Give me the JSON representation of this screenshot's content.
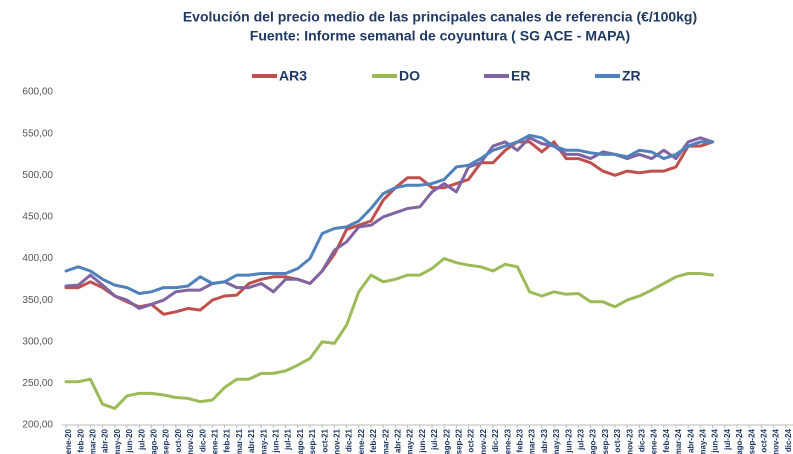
{
  "chart_data": {
    "type": "line",
    "title": "Evolución del precio medio de las principales canales de referencia  (€/100kg)",
    "subtitle": "Fuente: Informe semanal de coyuntura ( SG ACE - MAPA)",
    "categories": [
      "ene-20",
      "feb-20",
      "mar-20",
      "abr-20",
      "may-20",
      "jun-20",
      "jul-20",
      "ago-20",
      "sep-20",
      "oct-20",
      "nov-20",
      "dic-20",
      "ene-21",
      "feb-21",
      "mar-21",
      "abr-21",
      "may-21",
      "jun-21",
      "jul-21",
      "ago-21",
      "sep-21",
      "oct-21",
      "nov-21",
      "dic-21",
      "ene-22",
      "feb-22",
      "mar-22",
      "abr-22",
      "may-22",
      "jun-22",
      "jul-22",
      "ago-22",
      "sep-22",
      "oct-22",
      "nov-22",
      "dic-22",
      "ene-23",
      "feb-23",
      "mar-23",
      "abr-23",
      "may-23",
      "jun-23",
      "jul-23",
      "ago-23",
      "sep-23",
      "oct-23",
      "nov-23",
      "dic-23",
      "ene-24",
      "feb-24",
      "mar-24",
      "abr-24",
      "may-24",
      "jun-24",
      "jul-24",
      "ago-24",
      "sep-24",
      "oct-24",
      "nov-24",
      "dic-24"
    ],
    "series": [
      {
        "name": "AR3",
        "color": "#c0504d",
        "values": [
          365,
          365,
          372,
          365,
          355,
          348,
          342,
          345,
          333,
          336,
          340,
          338,
          350,
          355,
          356,
          370,
          375,
          378,
          378,
          375,
          370,
          385,
          405,
          435,
          440,
          445,
          470,
          485,
          497,
          497,
          485,
          485,
          490,
          495,
          515,
          515,
          530,
          540,
          540,
          528,
          540,
          520,
          520,
          515,
          505,
          500,
          505,
          503,
          505,
          505,
          510,
          535,
          535,
          540,
          null,
          null,
          null,
          null,
          null,
          null
        ]
      },
      {
        "name": "DO",
        "color": "#9bbb59",
        "values": [
          252,
          252,
          255,
          225,
          220,
          235,
          238,
          238,
          236,
          233,
          232,
          228,
          230,
          245,
          255,
          255,
          262,
          262,
          265,
          272,
          280,
          300,
          298,
          320,
          360,
          380,
          372,
          375,
          380,
          380,
          388,
          400,
          395,
          392,
          390,
          385,
          393,
          390,
          360,
          355,
          360,
          357,
          358,
          348,
          348,
          342,
          350,
          355,
          362,
          370,
          378,
          382,
          382,
          380,
          null,
          null,
          null,
          null,
          null,
          null
        ]
      },
      {
        "name": "ER",
        "color": "#8064a2",
        "values": [
          367,
          368,
          380,
          368,
          355,
          350,
          340,
          345,
          350,
          360,
          362,
          362,
          370,
          372,
          365,
          365,
          370,
          360,
          375,
          375,
          370,
          385,
          410,
          420,
          438,
          440,
          450,
          455,
          460,
          462,
          480,
          490,
          480,
          510,
          515,
          535,
          540,
          530,
          545,
          538,
          535,
          525,
          525,
          520,
          528,
          525,
          520,
          525,
          520,
          530,
          520,
          540,
          545,
          540,
          null,
          null,
          null,
          null,
          null,
          null
        ]
      },
      {
        "name": "ZR",
        "color": "#4f81bd",
        "values": [
          385,
          390,
          385,
          375,
          368,
          365,
          358,
          360,
          365,
          365,
          367,
          378,
          370,
          372,
          380,
          380,
          382,
          382,
          382,
          388,
          400,
          430,
          436,
          438,
          445,
          460,
          478,
          485,
          488,
          488,
          490,
          495,
          510,
          512,
          520,
          530,
          535,
          540,
          548,
          545,
          535,
          530,
          530,
          527,
          525,
          525,
          522,
          530,
          528,
          520,
          525,
          535,
          540,
          540,
          null,
          null,
          null,
          null,
          null,
          null
        ]
      }
    ],
    "ylim": [
      200,
      600
    ],
    "yticks": [
      {
        "value": 200,
        "label": "200,00"
      },
      {
        "value": 250,
        "label": "250,00"
      },
      {
        "value": 300,
        "label": "300,00"
      },
      {
        "value": 350,
        "label": "350,00"
      },
      {
        "value": 400,
        "label": "400,00"
      },
      {
        "value": 450,
        "label": "450,00"
      },
      {
        "value": 500,
        "label": "500,00"
      },
      {
        "value": 550,
        "label": "550,00"
      },
      {
        "value": 600,
        "label": "600,00"
      }
    ],
    "grid": false,
    "legend": "top"
  }
}
